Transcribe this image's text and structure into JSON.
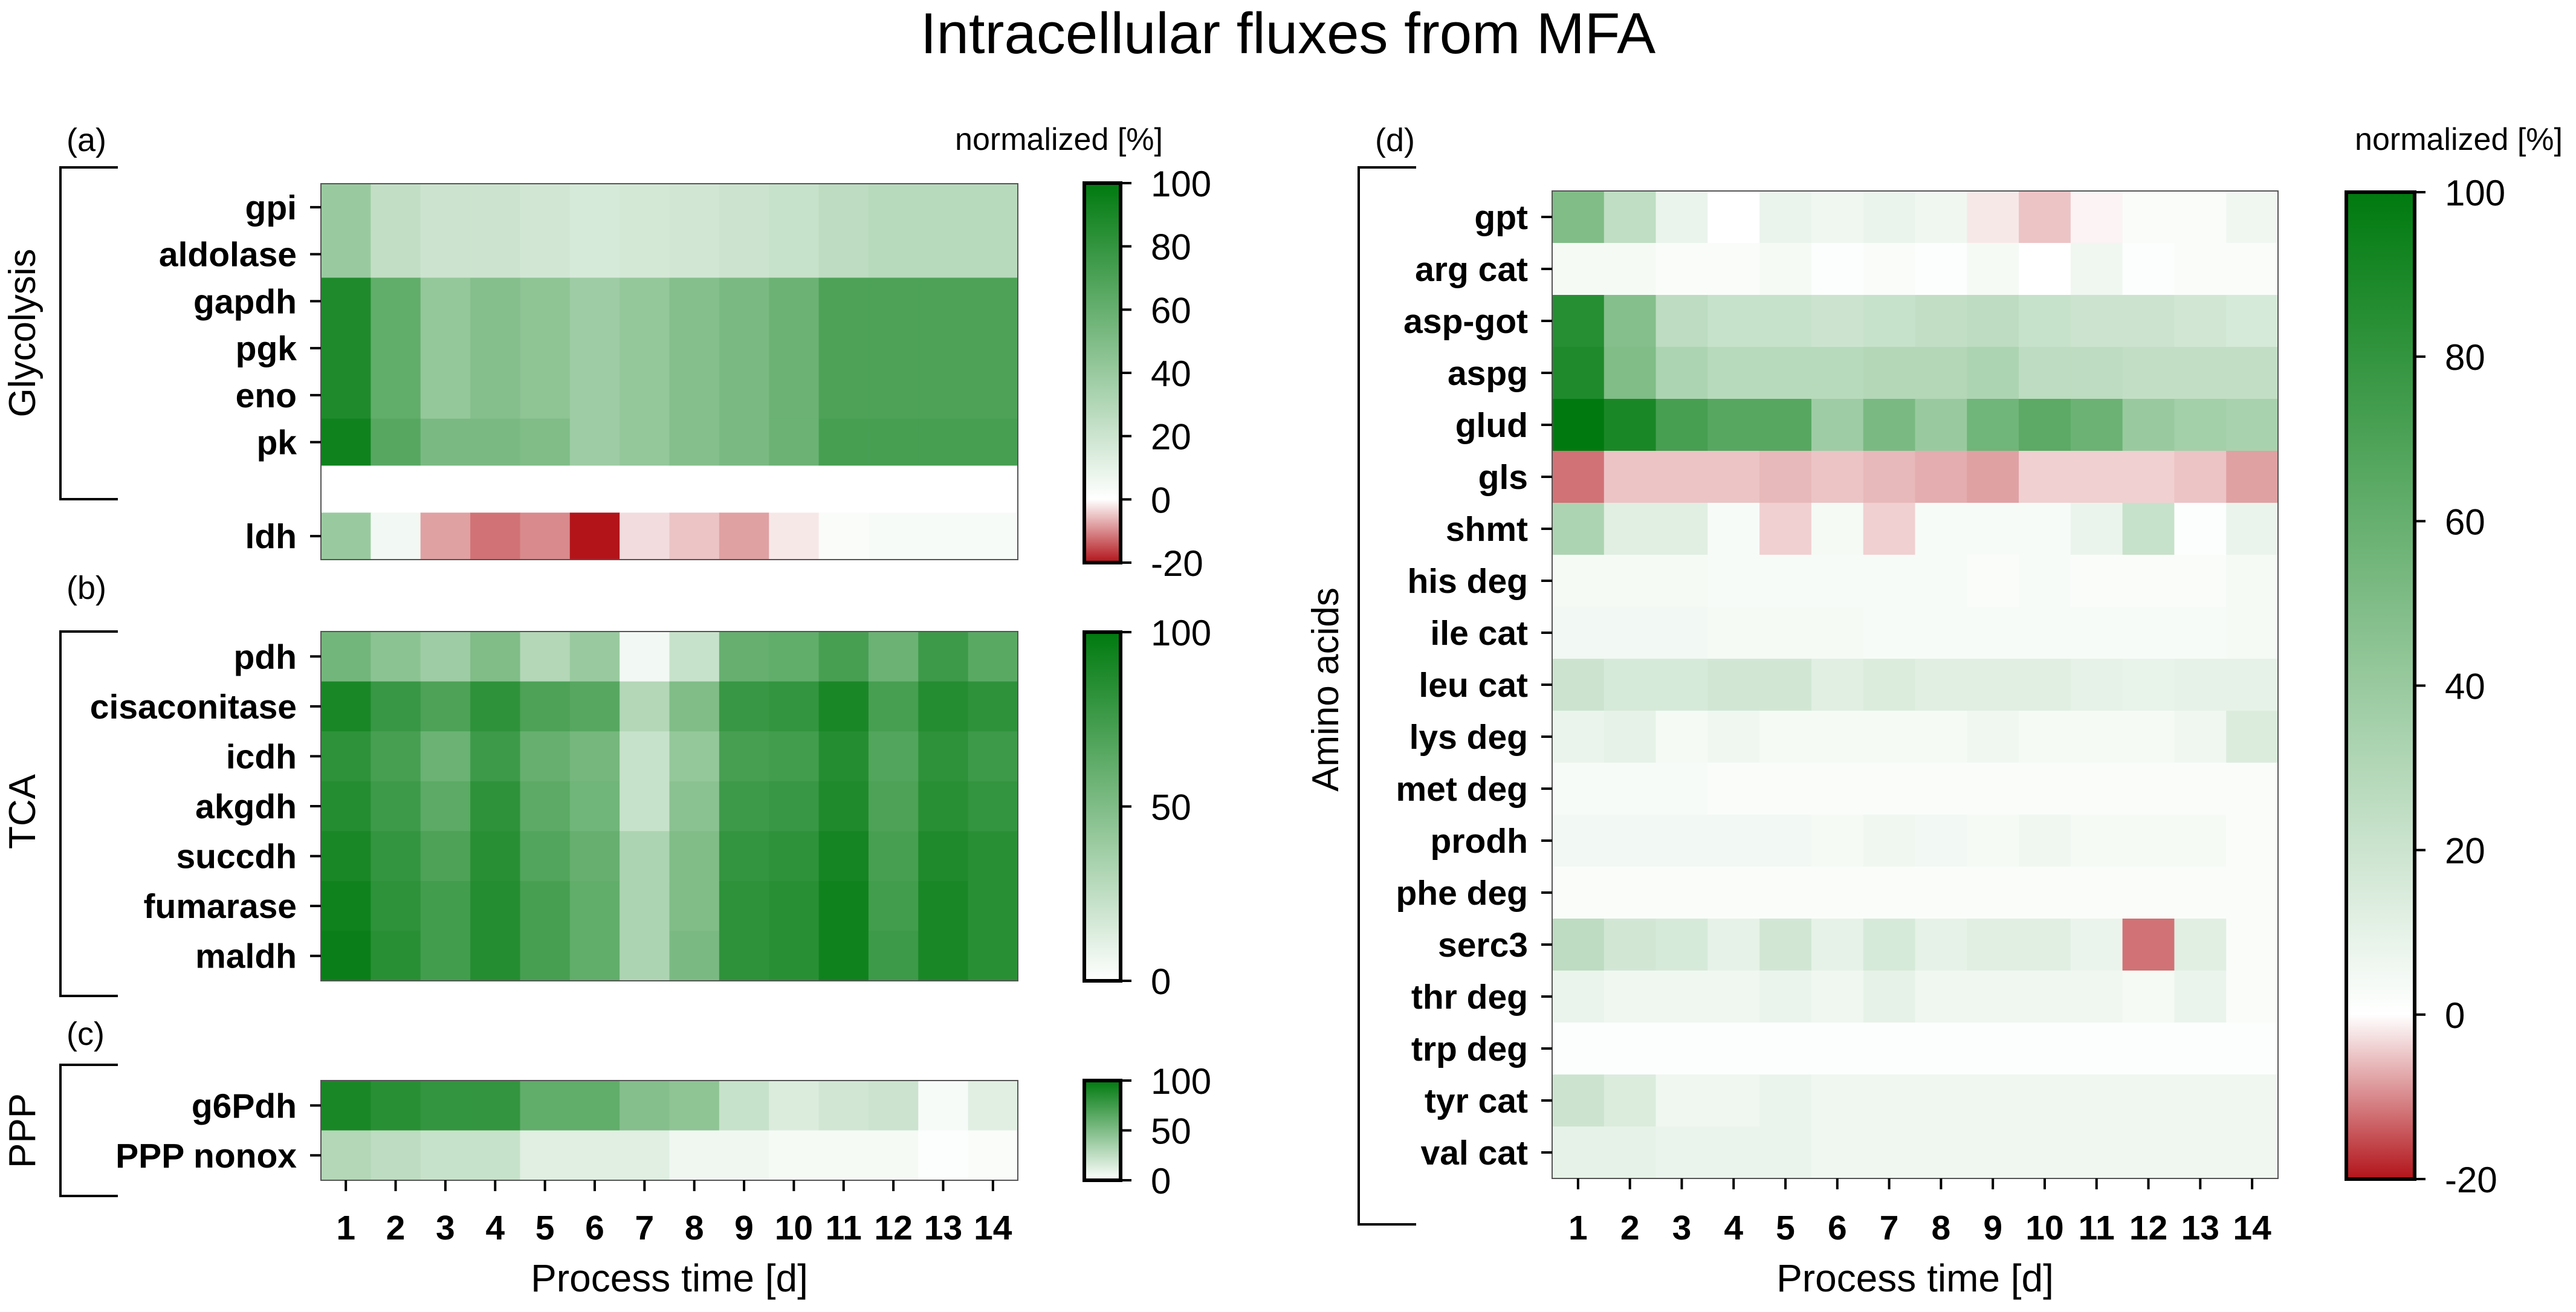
{
  "title": "Intracellular fluxes from MFA",
  "colors": {
    "negative": "#b2141a",
    "zero": "#ffffff",
    "positive": "#007a0f"
  },
  "chart_data": [
    {
      "panel": "(a)",
      "group": "Glycolysis",
      "type": "heatmap",
      "rows": [
        "gpi",
        "aldolase",
        "gapdh",
        "pgk",
        "eno",
        "pk",
        "",
        "ldh"
      ],
      "columns": [
        "1",
        "2",
        "3",
        "4",
        "5",
        "6",
        "7",
        "8",
        "9",
        "10",
        "11",
        "12",
        "13",
        "14"
      ],
      "xlabel": "",
      "values": [
        [
          40,
          24,
          20,
          20,
          18,
          16,
          17,
          18,
          20,
          22,
          26,
          28,
          28,
          28
        ],
        [
          40,
          24,
          20,
          20,
          18,
          16,
          17,
          18,
          20,
          22,
          26,
          28,
          28,
          28
        ],
        [
          88,
          62,
          42,
          48,
          44,
          38,
          42,
          48,
          52,
          58,
          70,
          70,
          70,
          70
        ],
        [
          88,
          62,
          42,
          48,
          44,
          38,
          42,
          48,
          52,
          58,
          70,
          70,
          70,
          70
        ],
        [
          88,
          62,
          42,
          48,
          44,
          38,
          42,
          48,
          52,
          58,
          70,
          70,
          70,
          70
        ],
        [
          94,
          66,
          52,
          52,
          50,
          38,
          42,
          48,
          52,
          58,
          72,
          72,
          72,
          72
        ],
        [
          null,
          null,
          null,
          null,
          null,
          null,
          null,
          null,
          null,
          null,
          null,
          null,
          null,
          null
        ],
        [
          40,
          5,
          -8,
          -12,
          -10,
          -20,
          -3,
          -5,
          -8,
          -2,
          2,
          3,
          3,
          3
        ]
      ],
      "colorbar": {
        "title": "normalized [%]",
        "ticks": [
          "100",
          "80",
          "60",
          "40",
          "20",
          "0",
          "-20"
        ],
        "range": [
          -20,
          100
        ]
      }
    },
    {
      "panel": "(b)",
      "group": "TCA",
      "type": "heatmap",
      "rows": [
        "pdh",
        "cisaconitase",
        "icdh",
        "akgdh",
        "succdh",
        "fumarase",
        "maldh"
      ],
      "columns": [
        "1",
        "2",
        "3",
        "4",
        "5",
        "6",
        "7",
        "8",
        "9",
        "10",
        "11",
        "12",
        "13",
        "14"
      ],
      "xlabel": "",
      "values": [
        [
          55,
          45,
          38,
          50,
          30,
          40,
          5,
          22,
          60,
          62,
          72,
          58,
          76,
          65
        ],
        [
          90,
          78,
          70,
          82,
          70,
          66,
          30,
          50,
          78,
          80,
          90,
          72,
          86,
          82
        ],
        [
          82,
          72,
          58,
          76,
          60,
          54,
          22,
          42,
          72,
          74,
          86,
          68,
          82,
          76
        ],
        [
          86,
          76,
          64,
          82,
          64,
          56,
          22,
          46,
          76,
          78,
          88,
          70,
          84,
          80
        ],
        [
          90,
          80,
          70,
          84,
          68,
          60,
          32,
          50,
          80,
          82,
          92,
          72,
          88,
          84
        ],
        [
          94,
          82,
          74,
          86,
          72,
          62,
          32,
          50,
          82,
          84,
          94,
          74,
          90,
          84
        ],
        [
          96,
          84,
          74,
          86,
          72,
          62,
          32,
          52,
          82,
          84,
          94,
          76,
          90,
          84
        ]
      ],
      "colorbar": {
        "title": "",
        "ticks": [
          "100",
          "50",
          "0"
        ],
        "range": [
          0,
          100
        ]
      }
    },
    {
      "panel": "(c)",
      "group": "PPP",
      "type": "heatmap",
      "rows": [
        "g6Pdh",
        "PPP nonox"
      ],
      "columns": [
        "1",
        "2",
        "3",
        "4",
        "5",
        "6",
        "7",
        "8",
        "9",
        "10",
        "11",
        "12",
        "13",
        "14"
      ],
      "xlabel": "Process time [d]",
      "values": [
        [
          90,
          84,
          80,
          80,
          62,
          62,
          48,
          44,
          22,
          14,
          18,
          20,
          3,
          12
        ],
        [
          30,
          26,
          22,
          22,
          12,
          12,
          12,
          6,
          6,
          4,
          4,
          4,
          1,
          2
        ]
      ],
      "colorbar": {
        "title": "",
        "ticks": [
          "100",
          "50",
          "0"
        ],
        "range": [
          0,
          100
        ]
      }
    },
    {
      "panel": "(d)",
      "group": "Amino acids",
      "type": "heatmap",
      "rows": [
        "gpt",
        "arg cat",
        "asp-got",
        "aspg",
        "glud",
        "gls",
        "shmt",
        "his deg",
        "ile cat",
        "leu cat",
        "lys deg",
        "met deg",
        "prodh",
        "phe deg",
        "serc3",
        "thr deg",
        "trp deg",
        "tyr cat",
        "val cat"
      ],
      "columns": [
        "1",
        "2",
        "3",
        "4",
        "5",
        "6",
        "7",
        "8",
        "9",
        "10",
        "11",
        "12",
        "13",
        "14"
      ],
      "xlabel": "Process time [d]",
      "values": [
        [
          50,
          25,
          8,
          0,
          8,
          6,
          8,
          6,
          -2,
          -5,
          -1,
          2,
          2,
          6
        ],
        [
          4,
          4,
          2,
          2,
          4,
          1,
          2,
          1,
          4,
          0,
          6,
          1,
          2,
          2
        ],
        [
          85,
          48,
          26,
          22,
          22,
          20,
          22,
          24,
          26,
          22,
          20,
          20,
          18,
          16
        ],
        [
          88,
          50,
          32,
          28,
          28,
          28,
          30,
          30,
          32,
          26,
          26,
          24,
          24,
          24
        ],
        [
          100,
          90,
          72,
          66,
          66,
          38,
          52,
          40,
          56,
          64,
          58,
          40,
          36,
          34
        ],
        [
          -12,
          -5,
          -5,
          -5,
          -6,
          -5,
          -6,
          -7,
          -8,
          -4,
          -4,
          -4,
          -5,
          -8
        ],
        [
          32,
          12,
          12,
          3,
          -4,
          4,
          -4,
          3,
          3,
          3,
          8,
          22,
          1,
          8
        ],
        [
          4,
          4,
          4,
          3,
          3,
          3,
          3,
          3,
          2,
          3,
          2,
          2,
          2,
          4
        ],
        [
          5,
          5,
          5,
          4,
          4,
          4,
          3,
          3,
          3,
          3,
          3,
          3,
          3,
          4
        ],
        [
          20,
          16,
          16,
          18,
          18,
          12,
          14,
          12,
          12,
          12,
          10,
          9,
          10,
          10
        ],
        [
          8,
          10,
          4,
          6,
          4,
          4,
          4,
          4,
          6,
          4,
          4,
          4,
          6,
          14
        ],
        [
          3,
          3,
          3,
          2,
          2,
          2,
          2,
          2,
          2,
          2,
          2,
          2,
          2,
          2
        ],
        [
          5,
          5,
          5,
          5,
          5,
          4,
          6,
          5,
          4,
          6,
          4,
          4,
          4,
          2
        ],
        [
          2,
          2,
          2,
          2,
          2,
          2,
          2,
          2,
          2,
          2,
          2,
          2,
          2,
          2
        ],
        [
          26,
          18,
          16,
          10,
          18,
          10,
          16,
          10,
          12,
          12,
          8,
          -12,
          12,
          2
        ],
        [
          8,
          6,
          6,
          6,
          8,
          6,
          10,
          6,
          6,
          6,
          6,
          4,
          8,
          2
        ],
        [
          1,
          1,
          1,
          1,
          1,
          1,
          1,
          1,
          1,
          1,
          1,
          1,
          1,
          1
        ],
        [
          20,
          14,
          6,
          6,
          8,
          6,
          6,
          6,
          6,
          6,
          6,
          6,
          6,
          6
        ],
        [
          10,
          10,
          8,
          8,
          8,
          6,
          6,
          6,
          6,
          6,
          6,
          6,
          6,
          6
        ]
      ],
      "colorbar": {
        "title": "normalized [%]",
        "ticks": [
          "100",
          "80",
          "60",
          "40",
          "20",
          "0",
          "-20"
        ],
        "range": [
          -20,
          100
        ]
      }
    }
  ]
}
